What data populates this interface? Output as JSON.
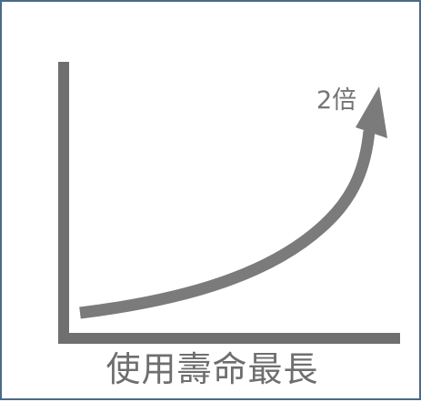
{
  "diagram": {
    "curve_label": "2倍",
    "caption": "使用壽命最長"
  },
  "colors": {
    "axis": "#6f6f6f",
    "curve": "#7b7b7b",
    "frame_border": "#4a6a86",
    "text": "#6e6e6e"
  }
}
